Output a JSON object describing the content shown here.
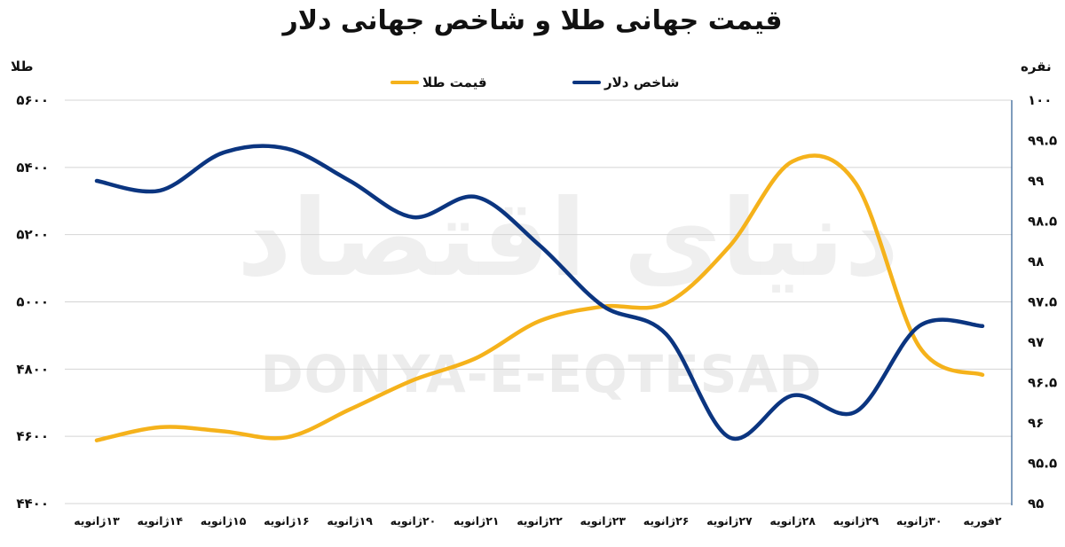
{
  "title": "قیمت جهانی طلا و شاخص جهانی دلار",
  "watermark": {
    "en": "DONYA-E-EQTESAD",
    "fa": "دنیای اقتصاد"
  },
  "colors": {
    "gold": "#F5B21B",
    "dollar": "#0B3580",
    "grid": "#d4d4d4",
    "right_axis": "#2a5a90"
  },
  "chart_data": {
    "type": "line",
    "title": "قیمت جهانی طلا و شاخص جهانی دلار",
    "categories": [
      "۱۳ژانویه",
      "۱۴ژانویه",
      "۱۵ژانویه",
      "۱۶ژانویه",
      "۱۹ژانویه",
      "۲۰ژانویه",
      "۲۱ژانویه",
      "۲۲ژانویه",
      "۲۳ژانویه",
      "۲۶ژانویه",
      "۲۷ژانویه",
      "۲۸ژانویه",
      "۲۹ژانویه",
      "۳۰ژانویه",
      "۲فوریه"
    ],
    "categories_en": [
      "13 Jan",
      "14 Jan",
      "15 Jan",
      "16 Jan",
      "19 Jan",
      "20 Jan",
      "21 Jan",
      "22 Jan",
      "23 Jan",
      "26 Jan",
      "27 Jan",
      "28 Jan",
      "29 Jan",
      "30 Jan",
      "2 Feb"
    ],
    "series": [
      {
        "name": "قیمت طلا",
        "name_en": "Gold price",
        "axis": "left",
        "color": "#F5B21B",
        "values": [
          4588,
          4627,
          4615,
          4597,
          4680,
          4767,
          4833,
          4943,
          4986,
          4996,
          5165,
          5418,
          5352,
          4867,
          4783
        ]
      },
      {
        "name": "شاخص دلار",
        "name_en": "Dollar index",
        "axis": "right",
        "color": "#0B3580",
        "values": [
          99.0,
          98.88,
          99.35,
          99.4,
          99.0,
          98.55,
          98.8,
          98.2,
          97.45,
          97.1,
          95.82,
          96.34,
          96.14,
          97.2,
          97.2
        ]
      }
    ],
    "left_axis": {
      "label": "طلا",
      "min": 4400,
      "max": 5600,
      "step": 200,
      "tick_labels": [
        "۵۶۰۰",
        "۵۴۰۰",
        "۵۲۰۰",
        "۵۰۰۰",
        "۴۸۰۰",
        "۴۶۰۰",
        "۴۴۰۰"
      ]
    },
    "right_axis": {
      "label": "نقره",
      "min": 95,
      "max": 100,
      "step": 0.5,
      "tick_labels": [
        "۱۰۰",
        "۹۹.۵",
        "۹۹",
        "۹۸.۵",
        "۹۸",
        "۹۷.۵",
        "۹۷",
        "۹۶.۵",
        "۹۶",
        "۹۵.۵",
        "۹۵"
      ]
    },
    "legend": {
      "position": "top",
      "entries": [
        "شاخص دلار",
        "قیمت طلا"
      ]
    },
    "grid": true
  }
}
